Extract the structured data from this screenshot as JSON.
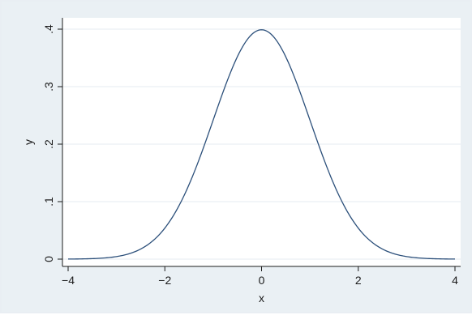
{
  "chart_data": {
    "type": "line",
    "title": "",
    "xlabel": "x",
    "ylabel": "y",
    "xlim": [
      -4,
      4
    ],
    "ylim": [
      0,
      0.4
    ],
    "x_ticks": [
      -4,
      -2,
      0,
      2,
      4
    ],
    "x_tick_labels": [
      "−4",
      "−2",
      "0",
      "2",
      "4"
    ],
    "y_ticks": [
      0,
      0.1,
      0.2,
      0.3,
      0.4
    ],
    "y_tick_labels": [
      "0",
      ".1",
      ".2",
      ".3",
      ".4"
    ],
    "grid": "horizontal",
    "legend": "none",
    "colors": {
      "outer_background": "#eaf0f4",
      "plot_background": "#ffffff",
      "grid": "#e6ebf0",
      "line": "#2b4f7a",
      "axis": "#1b1b1b"
    },
    "series": [
      {
        "x": [
          -4,
          -3.5,
          -3,
          -2.5,
          -2,
          -1.5,
          -1,
          -0.5,
          0,
          0.5,
          1,
          1.5,
          2,
          2.5,
          3,
          3.5,
          4
        ],
        "values": [
          0.0001,
          0.0009,
          0.0044,
          0.0175,
          0.054,
          0.1295,
          0.242,
          0.3521,
          0.3989,
          0.3521,
          0.242,
          0.1295,
          0.054,
          0.0175,
          0.0044,
          0.0009,
          0.0001
        ]
      }
    ]
  }
}
